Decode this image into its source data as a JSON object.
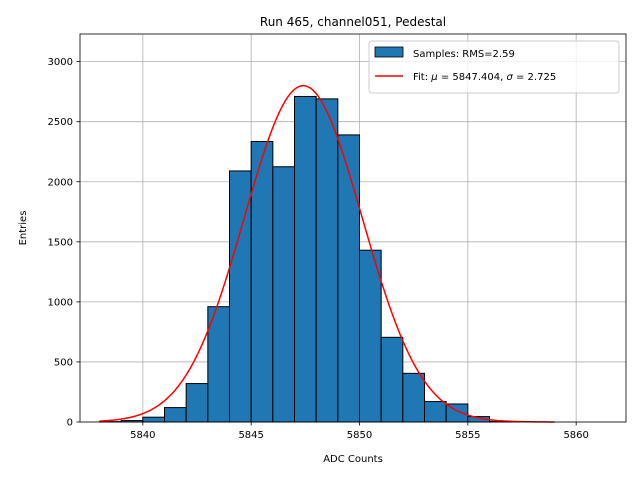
{
  "chart_data": {
    "type": "histogram",
    "title": "Run 465, channel051, Pedestal",
    "xlabel": "ADC Counts",
    "ylabel": "Entries",
    "xlim": [
      5837.1,
      5862.3
    ],
    "ylim": [
      0,
      3230
    ],
    "grid": true,
    "legend_position": "top-right",
    "xticks": [
      5840,
      5845,
      5850,
      5855,
      5860
    ],
    "yticks": [
      0,
      500,
      1000,
      1500,
      2000,
      2500,
      3000
    ],
    "bins": [
      {
        "start": 5838,
        "end": 5839,
        "value": 3
      },
      {
        "start": 5839,
        "end": 5840,
        "value": 12
      },
      {
        "start": 5840,
        "end": 5841,
        "value": 40
      },
      {
        "start": 5841,
        "end": 5842,
        "value": 120
      },
      {
        "start": 5842,
        "end": 5843,
        "value": 320
      },
      {
        "start": 5843,
        "end": 5844,
        "value": 960
      },
      {
        "start": 5844,
        "end": 5845,
        "value": 2090
      },
      {
        "start": 5845,
        "end": 5846,
        "value": 2335
      },
      {
        "start": 5846,
        "end": 5847,
        "value": 2125
      },
      {
        "start": 5847,
        "end": 5848,
        "value": 2710
      },
      {
        "start": 5848,
        "end": 5849,
        "value": 2690
      },
      {
        "start": 5849,
        "end": 5850,
        "value": 2390
      },
      {
        "start": 5850,
        "end": 5851,
        "value": 1430
      },
      {
        "start": 5851,
        "end": 5852,
        "value": 705
      },
      {
        "start": 5852,
        "end": 5853,
        "value": 405
      },
      {
        "start": 5853,
        "end": 5854,
        "value": 170
      },
      {
        "start": 5854,
        "end": 5855,
        "value": 150
      },
      {
        "start": 5855,
        "end": 5856,
        "value": 45
      },
      {
        "start": 5856,
        "end": 5857,
        "value": 5
      }
    ],
    "fit": {
      "type": "gaussian",
      "mu": 5847.404,
      "sigma": 2.725,
      "amplitude": 2800,
      "x_range": [
        5838,
        5859
      ],
      "color": "#ff0000"
    },
    "bar_color": "#1f77b4",
    "bar_edge_color": "#000000",
    "legend": [
      {
        "label": "Samples: RMS=2.59",
        "kind": "patch"
      },
      {
        "label_prefix": "Fit: ",
        "mu_symbol": "μ",
        "mu_text": " = 5847.404, ",
        "sigma_symbol": "σ",
        "sigma_text": " = 2.725",
        "kind": "line"
      }
    ]
  }
}
